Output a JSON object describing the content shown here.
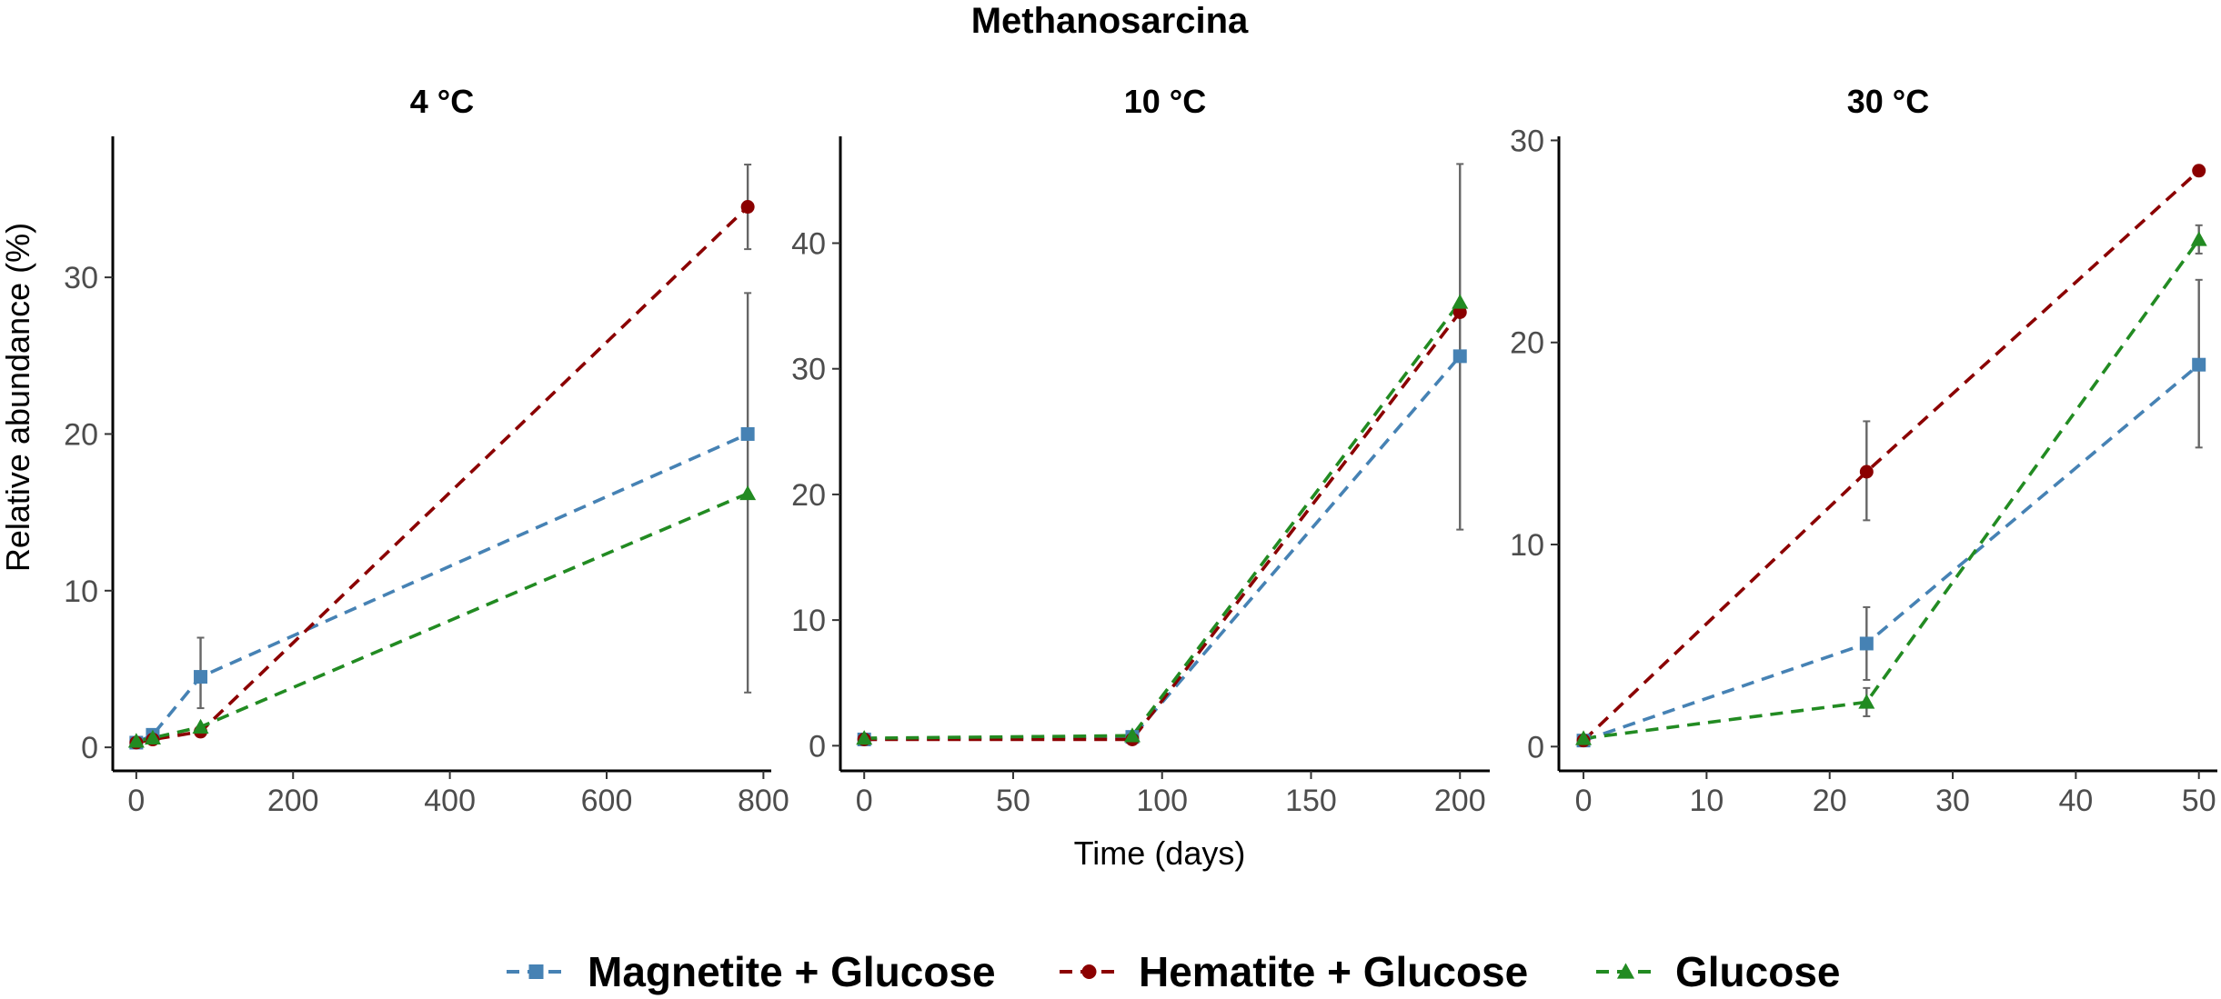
{
  "title": "Methanosarcina",
  "xlabel": "Time (days)",
  "ylabel": "Relative abundance (%)",
  "legend": [
    {
      "key": "magnetite",
      "label": "Magnetite + Glucose",
      "color": "#4682b4",
      "marker": "square"
    },
    {
      "key": "hematite",
      "label": "Hematite + Glucose",
      "color": "#8b0000",
      "marker": "circle"
    },
    {
      "key": "glucose",
      "label": "Glucose",
      "color": "#228b22",
      "marker": "triangle"
    }
  ],
  "chart_data": [
    {
      "type": "line",
      "title": "4 °C",
      "xlim": [
        -30,
        810
      ],
      "ylim": [
        -1.5,
        39
      ],
      "xticks": [
        0,
        200,
        400,
        600,
        800
      ],
      "yticks": [
        0,
        10,
        20,
        30
      ],
      "series": [
        {
          "name": "Magnetite + Glucose",
          "key": "magnetite",
          "points": [
            {
              "x": 0,
              "y": 0.3
            },
            {
              "x": 21,
              "y": 0.8
            },
            {
              "x": 82,
              "y": 4.5,
              "err": [
                2.5,
                7.0
              ]
            },
            {
              "x": 780,
              "y": 20.0
            }
          ]
        },
        {
          "name": "Hematite + Glucose",
          "key": "hematite",
          "points": [
            {
              "x": 0,
              "y": 0.3
            },
            {
              "x": 21,
              "y": 0.5
            },
            {
              "x": 82,
              "y": 1.0
            },
            {
              "x": 780,
              "y": 34.5,
              "err": [
                31.8,
                37.2
              ]
            }
          ]
        },
        {
          "name": "Glucose",
          "key": "glucose",
          "points": [
            {
              "x": 0,
              "y": 0.4
            },
            {
              "x": 21,
              "y": 0.6
            },
            {
              "x": 82,
              "y": 1.3
            },
            {
              "x": 780,
              "y": 16.2,
              "err": [
                3.5,
                29.0
              ]
            }
          ]
        }
      ]
    },
    {
      "type": "line",
      "title": "10 °C",
      "xlim": [
        -8,
        210
      ],
      "ylim": [
        -2,
        48.5
      ],
      "xticks": [
        0,
        50,
        100,
        150,
        200
      ],
      "yticks": [
        0,
        10,
        20,
        30,
        40
      ],
      "series": [
        {
          "name": "Magnetite + Glucose",
          "key": "magnetite",
          "points": [
            {
              "x": 0,
              "y": 0.5
            },
            {
              "x": 90,
              "y": 0.7
            },
            {
              "x": 200,
              "y": 31.0
            }
          ]
        },
        {
          "name": "Hematite + Glucose",
          "key": "hematite",
          "points": [
            {
              "x": 0,
              "y": 0.5
            },
            {
              "x": 90,
              "y": 0.5
            },
            {
              "x": 200,
              "y": 34.5
            }
          ]
        },
        {
          "name": "Glucose",
          "key": "glucose",
          "points": [
            {
              "x": 0,
              "y": 0.6
            },
            {
              "x": 90,
              "y": 0.8
            },
            {
              "x": 200,
              "y": 35.3,
              "err": [
                17.2,
                46.3
              ]
            }
          ]
        }
      ]
    },
    {
      "type": "line",
      "title": "30 °C",
      "xlim": [
        -2,
        51.5
      ],
      "ylim": [
        -1.2,
        30.2
      ],
      "xticks": [
        0,
        10,
        20,
        30,
        40,
        50
      ],
      "yticks": [
        0,
        10,
        20,
        30
      ],
      "series": [
        {
          "name": "Magnetite + Glucose",
          "key": "magnetite",
          "points": [
            {
              "x": 0,
              "y": 0.3
            },
            {
              "x": 23,
              "y": 5.1,
              "err": [
                3.3,
                6.9
              ]
            },
            {
              "x": 50,
              "y": 18.9,
              "err": [
                14.8,
                23.1
              ]
            }
          ]
        },
        {
          "name": "Hematite + Glucose",
          "key": "hematite",
          "points": [
            {
              "x": 0,
              "y": 0.3
            },
            {
              "x": 23,
              "y": 13.6,
              "err": [
                11.2,
                16.1
              ]
            },
            {
              "x": 50,
              "y": 28.5
            }
          ]
        },
        {
          "name": "Glucose",
          "key": "glucose",
          "points": [
            {
              "x": 0,
              "y": 0.4
            },
            {
              "x": 23,
              "y": 2.2,
              "err": [
                1.5,
                2.9
              ]
            },
            {
              "x": 50,
              "y": 25.1,
              "err": [
                24.4,
                25.8
              ]
            }
          ]
        }
      ]
    }
  ]
}
